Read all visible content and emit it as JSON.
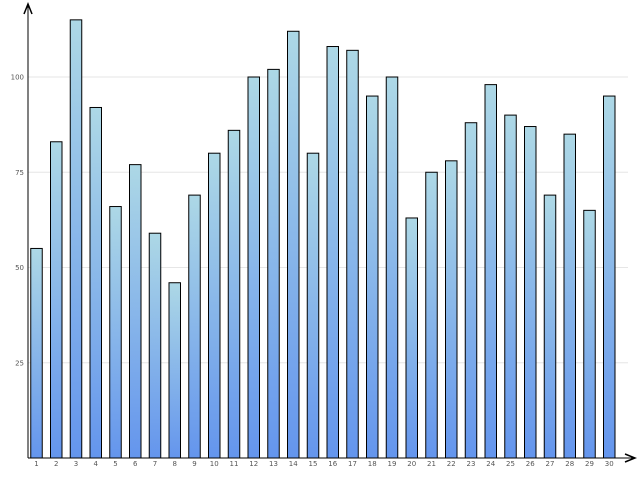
{
  "chart_data": {
    "type": "bar",
    "categories": [
      "1",
      "2",
      "3",
      "4",
      "5",
      "6",
      "7",
      "8",
      "9",
      "10",
      "11",
      "12",
      "13",
      "14",
      "15",
      "16",
      "17",
      "18",
      "19",
      "20",
      "21",
      "22",
      "23",
      "24",
      "25",
      "26",
      "27",
      "28",
      "29",
      "30"
    ],
    "values": [
      55,
      83,
      115,
      92,
      66,
      77,
      59,
      46,
      69,
      80,
      86,
      100,
      102,
      112,
      80,
      108,
      107,
      95,
      100,
      63,
      75,
      78,
      88,
      98,
      90,
      87,
      69,
      85,
      65,
      95
    ],
    "title": "",
    "xlabel": "",
    "ylabel": "",
    "ylim": [
      0,
      115
    ],
    "yticks": [
      "25",
      "50",
      "75",
      "100"
    ],
    "grid": "horizontal",
    "legend": "none",
    "colors": {
      "bar_top": "#add8e6",
      "bar_bottom": "#6495ed",
      "bar_stroke": "#000000",
      "axis": "#000000",
      "grid": "#e6e6e6"
    }
  }
}
